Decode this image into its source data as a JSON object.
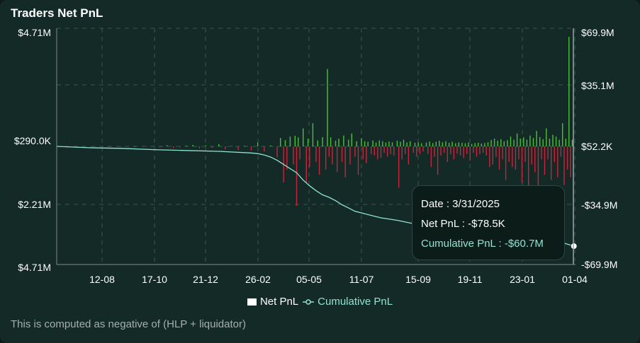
{
  "title": "Traders Net PnL",
  "footnote": "This is computed as negative of (HLP + liquidator)",
  "colors": {
    "positive_bar": "#4fbf3a",
    "negative_bar": "#c8243e",
    "cumulative_line": "#8fe3d2",
    "grid": "#3e5551",
    "background": "#132a26"
  },
  "tooltip": {
    "date": "Date : 3/31/2025",
    "net_pnl": "Net PnL : -$78.5K",
    "cumulative_pnl": "Cumulative PnL : -$60.7M"
  },
  "chart_data": {
    "type": "bar",
    "x_ticks": [
      "12-08",
      "17-10",
      "21-12",
      "26-02",
      "05-05",
      "11-07",
      "15-09",
      "19-11",
      "23-01",
      "01-04"
    ],
    "left_ticks": [
      "$4.71M",
      "$290.0K",
      "$2.21M",
      "$4.71M"
    ],
    "right_ticks": [
      "$69.9M",
      "$35.1M",
      "$52.2K",
      "-$34.9M",
      "-$69.9M"
    ],
    "left_ylim": [
      -4710000,
      4710000
    ],
    "right_ylim": [
      -69900000,
      69900000
    ],
    "legend": [
      "Net PnL",
      "Cumulative PnL"
    ],
    "series": [
      {
        "name": "Net PnL",
        "axis": "left",
        "points": [
          [
            0.08,
            5
          ],
          [
            0.12,
            -8
          ],
          [
            0.16,
            6
          ],
          [
            0.2,
            -10
          ],
          [
            0.24,
            9
          ],
          [
            0.28,
            -14
          ],
          [
            0.3,
            12
          ],
          [
            0.32,
            -35
          ],
          [
            0.34,
            45
          ],
          [
            0.36,
            -60
          ],
          [
            0.38,
            -40
          ],
          [
            0.4,
            30
          ],
          [
            0.42,
            55
          ],
          [
            0.44,
            -75
          ],
          [
            0.46,
            35
          ],
          [
            0.48,
            -55
          ],
          [
            0.5,
            90
          ],
          [
            0.52,
            -110
          ],
          [
            0.54,
            20
          ],
          [
            0.56,
            -140
          ],
          [
            0.58,
            25
          ],
          [
            0.6,
            -160
          ],
          [
            0.62,
            150
          ],
          [
            0.64,
            -200
          ],
          [
            0.66,
            35
          ],
          [
            0.68,
            -420
          ],
          [
            0.69,
            330
          ],
          [
            0.7,
            -1400
          ],
          [
            0.705,
            240
          ],
          [
            0.71,
            -900
          ],
          [
            0.72,
            380
          ],
          [
            0.73,
            -700
          ],
          [
            0.735,
            410
          ],
          [
            0.74,
            -2300
          ],
          [
            0.745,
            350
          ],
          [
            0.75,
            -500
          ],
          [
            0.76,
            700
          ],
          [
            0.77,
            -1400
          ],
          [
            0.775,
            300
          ],
          [
            0.78,
            -800
          ],
          [
            0.79,
            900
          ],
          [
            0.8,
            -600
          ],
          [
            0.805,
            230
          ],
          [
            0.81,
            -1100
          ],
          [
            0.82,
            360
          ],
          [
            0.83,
            -900
          ],
          [
            0.835,
            3000
          ],
          [
            0.84,
            -400
          ],
          [
            0.845,
            350
          ],
          [
            0.85,
            -700
          ],
          [
            0.86,
            220
          ],
          [
            0.865,
            -1000
          ],
          [
            0.87,
            300
          ],
          [
            0.88,
            -600
          ],
          [
            0.885,
            420
          ],
          [
            0.89,
            -1200
          ],
          [
            0.9,
            260
          ],
          [
            0.905,
            -700
          ],
          [
            0.91,
            500
          ],
          [
            0.92,
            -400
          ],
          [
            0.925,
            200
          ],
          [
            0.93,
            -1100
          ],
          [
            0.94,
            320
          ],
          [
            0.945,
            -500
          ],
          [
            0.95,
            200
          ],
          [
            0.955,
            -650
          ],
          [
            0.96,
            180
          ],
          [
            0.97,
            -300
          ],
          [
            0.975,
            230
          ],
          [
            0.98,
            -350
          ],
          [
            0.985,
            150
          ],
          [
            0.99,
            -500
          ],
          [
            0.995,
            230
          ],
          [
            1.0,
            -450
          ],
          [
            1.005,
            200
          ],
          [
            1.01,
            -250
          ],
          [
            1.015,
            150
          ],
          [
            1.02,
            -400
          ],
          [
            1.025,
            190
          ],
          [
            1.03,
            -300
          ],
          [
            1.035,
            160
          ],
          [
            1.04,
            -350
          ],
          [
            1.05,
            220
          ],
          [
            1.055,
            -1600
          ],
          [
            1.06,
            180
          ],
          [
            1.065,
            -500
          ],
          [
            1.07,
            260
          ],
          [
            1.075,
            -300
          ],
          [
            1.08,
            150
          ],
          [
            1.085,
            -700
          ],
          [
            1.09,
            200
          ],
          [
            1.1,
            -250
          ],
          [
            1.105,
            140
          ],
          [
            1.11,
            -400
          ],
          [
            1.115,
            160
          ],
          [
            1.12,
            -300
          ],
          [
            1.125,
            120
          ],
          [
            1.13,
            -200
          ],
          [
            1.14,
            150
          ],
          [
            1.145,
            -300
          ],
          [
            1.15,
            190
          ],
          [
            1.155,
            -800
          ],
          [
            1.16,
            130
          ],
          [
            1.165,
            -400
          ],
          [
            1.17,
            180
          ],
          [
            1.175,
            -1100
          ],
          [
            1.18,
            220
          ],
          [
            1.185,
            -350
          ],
          [
            1.19,
            160
          ],
          [
            1.195,
            -250
          ],
          [
            1.2,
            200
          ],
          [
            1.205,
            -600
          ],
          [
            1.21,
            140
          ],
          [
            1.215,
            -300
          ],
          [
            1.22,
            180
          ],
          [
            1.225,
            -500
          ],
          [
            1.23,
            120
          ],
          [
            1.235,
            -280
          ],
          [
            1.24,
            160
          ],
          [
            1.245,
            -350
          ],
          [
            1.25,
            140
          ],
          [
            1.255,
            -450
          ],
          [
            1.26,
            120
          ],
          [
            1.265,
            -300
          ],
          [
            1.27,
            150
          ],
          [
            1.275,
            -550
          ],
          [
            1.28,
            100
          ],
          [
            1.285,
            -250
          ],
          [
            1.29,
            130
          ],
          [
            1.295,
            -400
          ],
          [
            1.3,
            140
          ],
          [
            1.305,
            -300
          ],
          [
            1.31,
            110
          ],
          [
            1.315,
            -250
          ],
          [
            1.32,
            130
          ],
          [
            1.325,
            -350
          ],
          [
            1.33,
            160
          ],
          [
            1.335,
            -800
          ],
          [
            1.34,
            250
          ],
          [
            1.345,
            -700
          ],
          [
            1.35,
            300
          ],
          [
            1.355,
            -400
          ],
          [
            1.36,
            220
          ],
          [
            1.365,
            -900
          ],
          [
            1.37,
            280
          ],
          [
            1.375,
            -500
          ],
          [
            1.38,
            200
          ],
          [
            1.385,
            -1300
          ],
          [
            1.39,
            240
          ],
          [
            1.395,
            -600
          ],
          [
            1.4,
            380
          ],
          [
            1.405,
            -800
          ],
          [
            1.41,
            260
          ],
          [
            1.415,
            -900
          ],
          [
            1.42,
            500
          ],
          [
            1.425,
            -500
          ],
          [
            1.43,
            300
          ],
          [
            1.435,
            -1400
          ],
          [
            1.44,
            350
          ],
          [
            1.445,
            -600
          ],
          [
            1.45,
            260
          ],
          [
            1.455,
            -1800
          ],
          [
            1.46,
            420
          ],
          [
            1.465,
            -700
          ],
          [
            1.47,
            330
          ],
          [
            1.475,
            -1000
          ],
          [
            1.48,
            600
          ],
          [
            1.485,
            -1600
          ],
          [
            1.49,
            360
          ],
          [
            1.495,
            -500
          ],
          [
            1.5,
            280
          ],
          [
            1.505,
            -1100
          ],
          [
            1.51,
            700
          ],
          [
            1.515,
            -500
          ],
          [
            1.52,
            300
          ],
          [
            1.525,
            -1300
          ],
          [
            1.53,
            450
          ],
          [
            1.535,
            -600
          ],
          [
            1.54,
            380
          ],
          [
            1.545,
            -1200
          ],
          [
            1.55,
            260
          ],
          [
            1.555,
            -400
          ],
          [
            1.56,
            900
          ],
          [
            1.565,
            -1500
          ],
          [
            1.57,
            300
          ],
          [
            1.575,
            -900
          ],
          [
            1.58,
            4250
          ],
          [
            1.585,
            -1200
          ],
          [
            1.59,
            260
          ],
          [
            1.595,
            -80
          ]
        ]
      },
      {
        "name": "Cumulative PnL",
        "axis": "right",
        "points": [
          [
            0.0,
            0.0
          ],
          [
            0.1,
            -0.8
          ],
          [
            0.2,
            -1.2
          ],
          [
            0.3,
            -2.0
          ],
          [
            0.4,
            -2.5
          ],
          [
            0.5,
            -3.0
          ],
          [
            0.6,
            -4.0
          ],
          [
            0.62,
            -4.4
          ],
          [
            0.64,
            -5.2
          ],
          [
            0.66,
            -6.5
          ],
          [
            0.68,
            -8.5
          ],
          [
            0.7,
            -11.0
          ],
          [
            0.72,
            -13.5
          ],
          [
            0.74,
            -16.0
          ],
          [
            0.76,
            -20.5
          ],
          [
            0.78,
            -24.0
          ],
          [
            0.8,
            -27.0
          ],
          [
            0.82,
            -29.5
          ],
          [
            0.84,
            -31.0
          ],
          [
            0.86,
            -33.0
          ],
          [
            0.88,
            -35.5
          ],
          [
            0.9,
            -37.5
          ],
          [
            0.92,
            -39.5
          ],
          [
            0.95,
            -41.0
          ],
          [
            0.98,
            -42.5
          ],
          [
            1.0,
            -43.5
          ],
          [
            1.05,
            -45.0
          ],
          [
            1.1,
            -47.0
          ],
          [
            1.15,
            -48.5
          ],
          [
            1.2,
            -49.5
          ],
          [
            1.25,
            -50.5
          ],
          [
            1.3,
            -51.5
          ],
          [
            1.35,
            -52.5
          ],
          [
            1.4,
            -54.0
          ],
          [
            1.45,
            -55.0
          ],
          [
            1.5,
            -56.5
          ],
          [
            1.55,
            -58.0
          ],
          [
            1.595,
            -60.7
          ]
        ]
      }
    ]
  }
}
